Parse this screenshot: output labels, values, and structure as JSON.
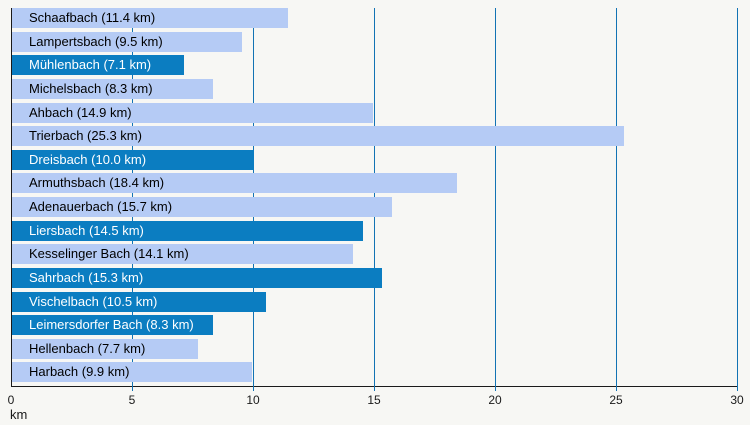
{
  "chart_data": {
    "type": "bar",
    "orientation": "horizontal",
    "title": "",
    "xlabel": "km",
    "unit": "km",
    "xlim": [
      0,
      30
    ],
    "xticks": [
      "0",
      "5",
      "10",
      "15",
      "20",
      "25",
      "30"
    ],
    "xtick_values": [
      0,
      5,
      10,
      15,
      20,
      25,
      30
    ],
    "grid": true,
    "legend": "none",
    "colors": {
      "background": "#f7f7f4",
      "bar_light": "#b5cbf5",
      "bar_dark": "#0b7dc1",
      "gridline": "#1273b4",
      "axis": "#1a1a1a",
      "text_on_light": "#000000",
      "text_on_dark": "#ffffff"
    },
    "bars": [
      {
        "name": "Schaafbach",
        "length_km": 11.4,
        "label": "Schaafbach (11.4 km)",
        "style": "light"
      },
      {
        "name": "Lampertsbach",
        "length_km": 9.5,
        "label": "Lampertsbach (9.5 km)",
        "style": "light"
      },
      {
        "name": "Mühlenbach",
        "length_km": 7.1,
        "label": "Mühlenbach (7.1 km)",
        "style": "dark"
      },
      {
        "name": "Michelsbach",
        "length_km": 8.3,
        "label": "Michelsbach (8.3 km)",
        "style": "light"
      },
      {
        "name": "Ahbach",
        "length_km": 14.9,
        "label": "Ahbach (14.9 km)",
        "style": "light"
      },
      {
        "name": "Trierbach",
        "length_km": 25.3,
        "label": "Trierbach (25.3 km)",
        "style": "light"
      },
      {
        "name": "Dreisbach",
        "length_km": 10.0,
        "label": "Dreisbach (10.0 km)",
        "style": "dark"
      },
      {
        "name": "Armuthsbach",
        "length_km": 18.4,
        "label": "Armuthsbach (18.4 km)",
        "style": "light"
      },
      {
        "name": "Adenauerbach",
        "length_km": 15.7,
        "label": "Adenauerbach (15.7 km)",
        "style": "light"
      },
      {
        "name": "Liersbach",
        "length_km": 14.5,
        "label": "Liersbach (14.5 km)",
        "style": "dark"
      },
      {
        "name": "Kesselinger Bach",
        "length_km": 14.1,
        "label": "Kesselinger Bach (14.1 km)",
        "style": "light"
      },
      {
        "name": "Sahrbach",
        "length_km": 15.3,
        "label": "Sahrbach (15.3 km)",
        "style": "dark"
      },
      {
        "name": "Vischelbach",
        "length_km": 10.5,
        "label": "Vischelbach (10.5 km)",
        "style": "dark"
      },
      {
        "name": "Leimersdorfer Bach",
        "length_km": 8.3,
        "label": "Leimersdorfer Bach (8.3 km)",
        "style": "dark"
      },
      {
        "name": "Hellenbach",
        "length_km": 7.7,
        "label": "Hellenbach (7.7 km)",
        "style": "light"
      },
      {
        "name": "Harbach",
        "length_km": 9.9,
        "label": "Harbach (9.9 km)",
        "style": "light"
      }
    ]
  }
}
